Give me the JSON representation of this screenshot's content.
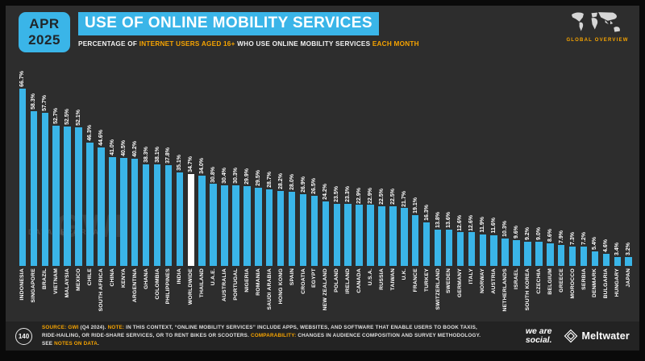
{
  "slide": {
    "badge": {
      "month": "APR",
      "year": "2025"
    },
    "title": "USE OF ONLINE MOBILITY SERVICES",
    "subtitle_parts": [
      {
        "text": "PERCENTAGE OF ",
        "highlight": false
      },
      {
        "text": "INTERNET USERS AGED 16+",
        "highlight": true
      },
      {
        "text": " WHO USE ONLINE MOBILITY SERVICES ",
        "highlight": false
      },
      {
        "text": "EACH MONTH",
        "highlight": true
      }
    ],
    "global_overview": "GLOBAL OVERVIEW",
    "watermarks": {
      "portal": "DATAREPORTAL",
      "gwi": "GWI"
    }
  },
  "chart_data": {
    "type": "bar",
    "unit": "%",
    "title": "Use of online mobility services",
    "ylabel": "Percentage of internet users aged 16+ who use online mobility services each month",
    "ylim": [
      0,
      70
    ],
    "bar_color": "#3ab5e8",
    "highlight_color": "#ffffff",
    "highlight_category": "WORLDWIDE",
    "categories": [
      "INDONESIA",
      "SINGAPORE",
      "BRAZIL",
      "VIETNAM",
      "MALAYSIA",
      "MEXICO",
      "CHILE",
      "SOUTH AFRICA",
      "CHINA",
      "KENYA",
      "ARGENTINA",
      "GHANA",
      "COLOMBIA",
      "PHILIPPINES",
      "INDIA",
      "WORLDWIDE",
      "THAILAND",
      "U.A.E.",
      "AUSTRALIA",
      "PORTUGAL",
      "NIGERIA",
      "ROMANIA",
      "SAUDI ARABIA",
      "HONG KONG",
      "SPAIN",
      "CROATIA",
      "EGYPT",
      "NEW ZEALAND",
      "POLAND",
      "IRELAND",
      "CANADA",
      "U.S.A.",
      "RUSSIA",
      "TAIWAN",
      "U.K.",
      "FRANCE",
      "TURKEY",
      "SWITZERLAND",
      "SWEDEN",
      "GERMANY",
      "ITALY",
      "NORWAY",
      "AUSTRIA",
      "NETHERLANDS",
      "ISRAEL",
      "SOUTH KOREA",
      "CZECHIA",
      "BELGIUM",
      "GREECE",
      "MOROCCO",
      "SERBIA",
      "DENMARK",
      "BULGARIA",
      "HUNGARY",
      "JAPAN"
    ],
    "values": [
      66.7,
      58.3,
      57.7,
      52.7,
      52.5,
      52.1,
      46.3,
      44.6,
      41.0,
      40.5,
      40.2,
      38.3,
      38.1,
      37.8,
      35.1,
      34.7,
      34.0,
      30.8,
      30.4,
      30.3,
      29.9,
      29.5,
      28.7,
      28.2,
      28.0,
      26.9,
      26.5,
      24.2,
      23.5,
      23.3,
      22.9,
      22.9,
      22.5,
      22.5,
      21.7,
      19.1,
      16.3,
      13.8,
      13.6,
      12.6,
      12.6,
      11.9,
      11.6,
      10.3,
      9.6,
      9.2,
      9.0,
      8.6,
      7.9,
      7.3,
      7.2,
      5.4,
      4.6,
      3.4,
      3.2
    ]
  },
  "footer": {
    "page_number": "140",
    "note_parts": [
      {
        "text": "SOURCE: ",
        "highlight": true
      },
      {
        "text": "GWI ",
        "highlight": true
      },
      {
        "text": "(Q4 2024). ",
        "highlight": false
      },
      {
        "text": "NOTE: ",
        "highlight": true
      },
      {
        "text": "IN THIS CONTEXT, “ONLINE MOBILITY SERVICES” INCLUDE APPS, WEBSITES, AND SOFTWARE THAT ENABLE USERS TO BOOK TAXIS, RIDE-HAILING, OR RIDE-SHARE SERVICES, OR TO RENT BIKES OR SCOOTERS. ",
        "highlight": false
      },
      {
        "text": "COMPARABILITY: ",
        "highlight": true
      },
      {
        "text": "CHANGES IN AUDIENCE COMPOSITION AND SURVEY METHODOLOGY. SEE ",
        "highlight": false
      },
      {
        "text": "NOTES ON DATA",
        "highlight": true
      },
      {
        "text": ".",
        "highlight": false
      }
    ],
    "logos": {
      "we_are_social_line1": "we are",
      "we_are_social_line2": "social.",
      "meltwater": "Meltwater"
    }
  },
  "colors": {
    "accent": "#3ab5e8",
    "highlight_bar": "#ffffff",
    "orange": "#f7a400",
    "background": "#2d2d2d"
  }
}
